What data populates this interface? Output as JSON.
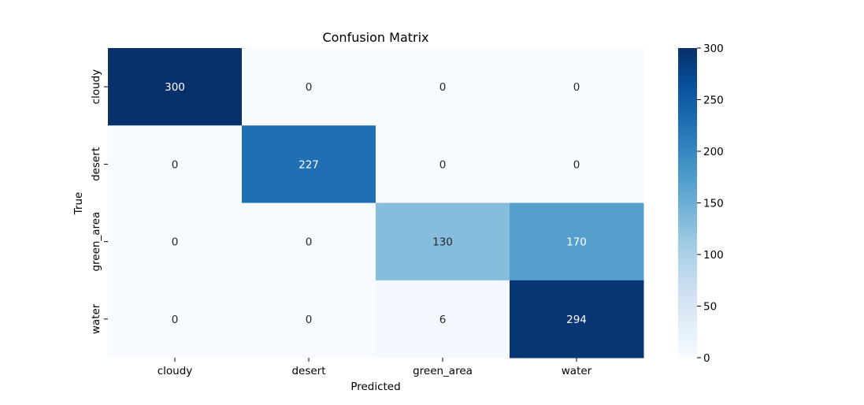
{
  "chart_data": {
    "type": "heatmap",
    "title": "Confusion Matrix",
    "xlabel": "Predicted",
    "ylabel": "True",
    "x_categories": [
      "cloudy",
      "desert",
      "green_area",
      "water"
    ],
    "y_categories": [
      "cloudy",
      "desert",
      "green_area",
      "water"
    ],
    "values": [
      [
        300,
        0,
        0,
        0
      ],
      [
        0,
        227,
        0,
        0
      ],
      [
        0,
        0,
        130,
        170
      ],
      [
        0,
        0,
        6,
        294
      ]
    ],
    "colormap": "Blues",
    "value_range": [
      0,
      300
    ],
    "colorbar": {
      "ticks": [
        0,
        50,
        100,
        150,
        200,
        250,
        300
      ]
    },
    "annotations": true
  }
}
